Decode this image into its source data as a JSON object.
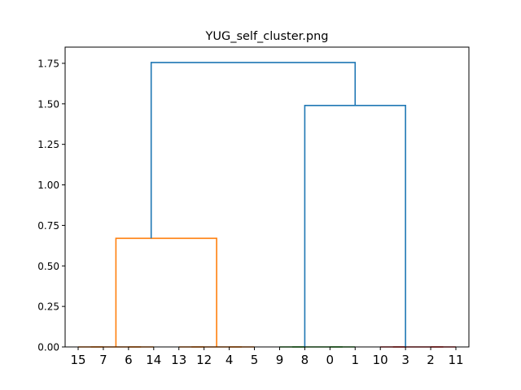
{
  "chart_data": {
    "type": "dendrogram",
    "title": "YUG_self_cluster.png",
    "xlabel": "",
    "ylabel": "",
    "ylim": [
      0,
      1.85
    ],
    "y_ticks": [
      0.0,
      0.25,
      0.5,
      0.75,
      1.0,
      1.25,
      1.5,
      1.75
    ],
    "y_tick_labels": [
      "0.00",
      "0.25",
      "0.50",
      "0.75",
      "1.00",
      "1.25",
      "1.50",
      "1.75"
    ],
    "leaves": [
      "15",
      "7",
      "6",
      "14",
      "13",
      "12",
      "4",
      "5",
      "9",
      "8",
      "0",
      "1",
      "10",
      "3",
      "2",
      "11"
    ],
    "links": [
      {
        "x": [
          0,
          0,
          1,
          1
        ],
        "y": [
          0,
          0,
          0,
          0
        ],
        "color": "#ff7f0e"
      },
      {
        "x": [
          2,
          2,
          3,
          3
        ],
        "y": [
          0,
          0,
          0,
          0
        ],
        "color": "#ff7f0e"
      },
      {
        "x": [
          0.5,
          0.5,
          2.5,
          2.5
        ],
        "y": [
          0,
          0,
          0,
          0
        ],
        "color": "#ff7f0e"
      },
      {
        "x": [
          4,
          4,
          5,
          5
        ],
        "y": [
          0,
          0,
          0,
          0
        ],
        "color": "#ff7f0e"
      },
      {
        "x": [
          6,
          6,
          7,
          7
        ],
        "y": [
          0,
          0,
          0,
          0
        ],
        "color": "#ff7f0e"
      },
      {
        "x": [
          4.5,
          4.5,
          6.5,
          6.5
        ],
        "y": [
          0,
          0,
          0,
          0
        ],
        "color": "#ff7f0e"
      },
      {
        "x": [
          1.5,
          1.5,
          5.5,
          5.5
        ],
        "y": [
          0,
          0.67,
          0.67,
          0
        ],
        "color": "#ff7f0e"
      },
      {
        "x": [
          8,
          8,
          9,
          9
        ],
        "y": [
          0,
          0,
          0,
          0
        ],
        "color": "#2ca02c"
      },
      {
        "x": [
          10,
          10,
          11,
          11
        ],
        "y": [
          0,
          0,
          0,
          0
        ],
        "color": "#2ca02c"
      },
      {
        "x": [
          8.5,
          8.5,
          10.5,
          10.5
        ],
        "y": [
          0,
          0,
          0,
          0
        ],
        "color": "#2ca02c"
      },
      {
        "x": [
          12,
          12,
          13,
          13
        ],
        "y": [
          0,
          0,
          0,
          0
        ],
        "color": "#d62728"
      },
      {
        "x": [
          14,
          14,
          15,
          15
        ],
        "y": [
          0,
          0,
          0,
          0
        ],
        "color": "#d62728"
      },
      {
        "x": [
          12.5,
          12.5,
          14.5,
          14.5
        ],
        "y": [
          0,
          0,
          0,
          0
        ],
        "color": "#d62728"
      },
      {
        "x": [
          9.0,
          9.0,
          13.0,
          13.0
        ],
        "y": [
          0,
          1.49,
          1.49,
          0
        ],
        "color": "#1f77b4"
      },
      {
        "x": [
          2.9,
          2.9,
          11.0,
          11.0
        ],
        "y": [
          0.67,
          1.755,
          1.755,
          1.49
        ],
        "color": "#1f77b4"
      }
    ]
  }
}
